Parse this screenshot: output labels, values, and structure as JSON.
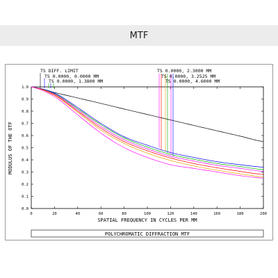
{
  "header": {
    "title": "MTF"
  },
  "chart_data": {
    "type": "line",
    "title": "",
    "xlabel": "SPATIAL FREQUENCY IN CYCLES PER MM",
    "ylabel": "MODULUS OF THE OTF",
    "footer": "POLYCHROMATIC DIFFRACTION MTF",
    "xlim": [
      0,
      200
    ],
    "ylim": [
      0,
      1
    ],
    "x_ticks": [
      "0",
      "20",
      "40",
      "60",
      "80",
      "100",
      "120",
      "140",
      "160",
      "180",
      "200"
    ],
    "y_ticks": [
      "0.0",
      "0.1",
      "0.2",
      "0.3",
      "0.4",
      "0.5",
      "0.6",
      "0.7",
      "0.8",
      "0.9",
      "1.0"
    ],
    "legend_left": [
      "TS DIFF. LIMIT",
      "TS 0.0000, 0.0000 MM",
      "TS 0.0000, 1.3800 MM"
    ],
    "legend_right": [
      "TS 0.0000, 2.3000 MM",
      "TS 0.0000, 3.2525 MM",
      "TS 0.0000, 4.6000 MM"
    ],
    "x": [
      0,
      20,
      40,
      60,
      80,
      100,
      120,
      140,
      160,
      180,
      200
    ],
    "series": [
      {
        "color": "#000000",
        "values": [
          1.0,
          0.954,
          0.909,
          0.864,
          0.818,
          0.773,
          0.728,
          0.683,
          0.639,
          0.595,
          0.551
        ]
      },
      {
        "color": "#0000ff",
        "values": [
          1.0,
          0.95,
          0.83,
          0.7,
          0.59,
          0.52,
          0.46,
          0.42,
          0.385,
          0.36,
          0.34
        ]
      },
      {
        "color": "#00aa00",
        "values": [
          1.0,
          0.945,
          0.82,
          0.69,
          0.58,
          0.505,
          0.445,
          0.405,
          0.37,
          0.345,
          0.32
        ]
      },
      {
        "color": "#ff00ff",
        "values": [
          1.0,
          0.94,
          0.81,
          0.675,
          0.565,
          0.49,
          0.43,
          0.39,
          0.355,
          0.33,
          0.305
        ]
      },
      {
        "color": "#ff0000",
        "values": [
          1.0,
          0.935,
          0.8,
          0.66,
          0.55,
          0.475,
          0.415,
          0.37,
          0.335,
          0.305,
          0.28
        ]
      },
      {
        "color": "#e8a000",
        "values": [
          1.0,
          0.93,
          0.79,
          0.645,
          0.535,
          0.455,
          0.395,
          0.35,
          0.315,
          0.285,
          0.26
        ]
      },
      {
        "color": "#ff00ff",
        "values": [
          1.0,
          0.92,
          0.77,
          0.62,
          0.5,
          0.42,
          0.36,
          0.33,
          0.3,
          0.27,
          0.25
        ]
      }
    ]
  }
}
